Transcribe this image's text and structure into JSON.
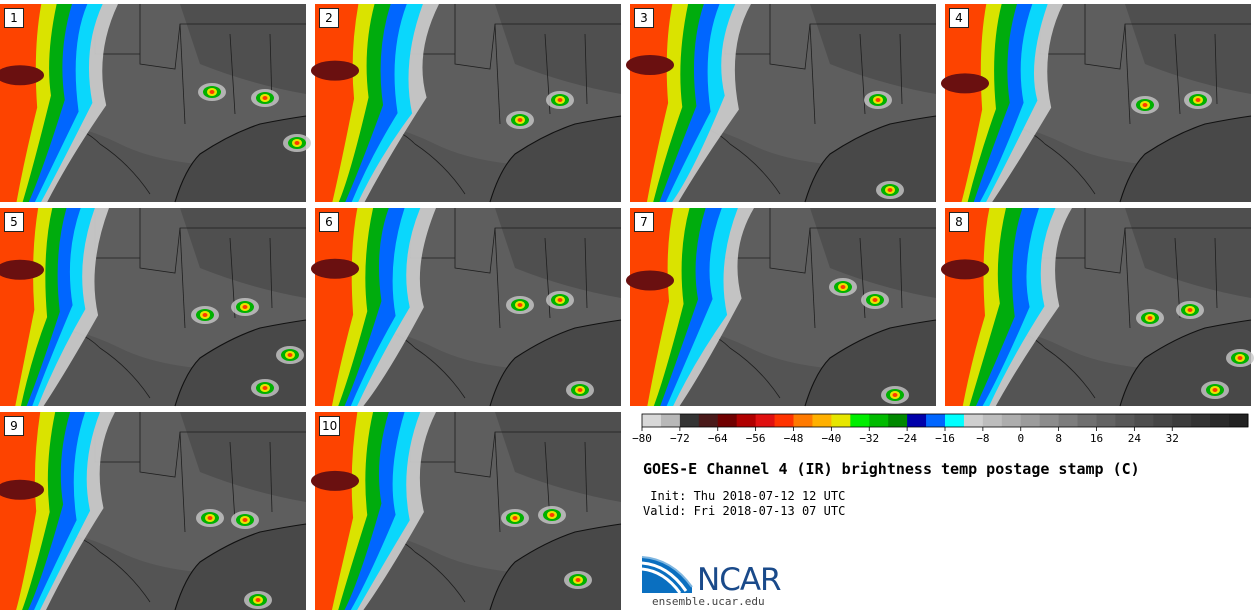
{
  "panels": [
    {
      "label": "1"
    },
    {
      "label": "2"
    },
    {
      "label": "3"
    },
    {
      "label": "4"
    },
    {
      "label": "5"
    },
    {
      "label": "6"
    },
    {
      "label": "7"
    },
    {
      "label": "8"
    },
    {
      "label": "9"
    },
    {
      "label": "10"
    }
  ],
  "colorbar": {
    "ticks": [
      "−80",
      "−72",
      "−64",
      "−56",
      "−48",
      "−40",
      "−32",
      "−24",
      "−16",
      "−8",
      "0",
      "8",
      "16",
      "24",
      "32"
    ],
    "colors": [
      "#d8d8d8",
      "#b8b8b8",
      "#343434",
      "#4a1a1a",
      "#700000",
      "#b00000",
      "#e01010",
      "#ff3300",
      "#ff7a00",
      "#ffb000",
      "#e6e600",
      "#00ee00",
      "#00bb00",
      "#008800",
      "#0000aa",
      "#0066ff",
      "#00ffff",
      "#cfcfcf",
      "#bdbdbd",
      "#adadad",
      "#9c9c9c",
      "#8c8c8c",
      "#7d7d7d",
      "#6f6f6f",
      "#636363",
      "#585858",
      "#4e4e4e",
      "#454545",
      "#3c3c3c",
      "#333333",
      "#2a2a2a",
      "#222222"
    ]
  },
  "title": "GOES-E Channel 4 (IR) brightness temp postage stamp (C)",
  "init": " Init: Thu 2018-07-12 12 UTC",
  "valid": "Valid: Fri 2018-07-13 07 UTC",
  "logo": {
    "text": "NCAR",
    "url": "ensemble.ucar.edu"
  }
}
